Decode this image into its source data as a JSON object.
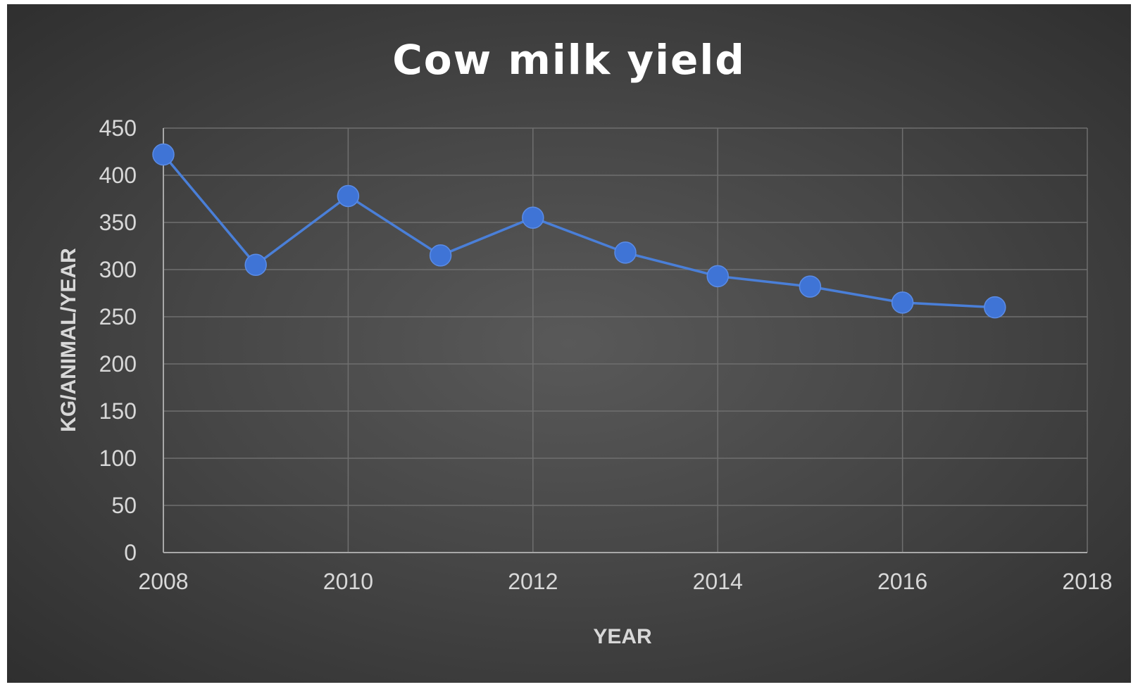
{
  "chart_data": {
    "type": "line",
    "title": "Cow milk yield",
    "xlabel": "YEAR",
    "ylabel": "KG/ANIMAL/YEAR",
    "xlim": [
      2008,
      2018
    ],
    "ylim": [
      0,
      450
    ],
    "x_ticks": [
      "2008",
      "2010",
      "2012",
      "2014",
      "2016",
      "2018"
    ],
    "y_ticks": [
      "0",
      "50",
      "100",
      "150",
      "200",
      "250",
      "300",
      "350",
      "400",
      "450"
    ],
    "grid": true,
    "legend": "none",
    "series": [
      {
        "x": [
          2008,
          2009,
          2010,
          2011,
          2012,
          2013,
          2014,
          2015,
          2016,
          2017
        ],
        "values": [
          422,
          305,
          378,
          315,
          355,
          318,
          293,
          282,
          265,
          260
        ],
        "color": "#3f74d6"
      }
    ]
  }
}
